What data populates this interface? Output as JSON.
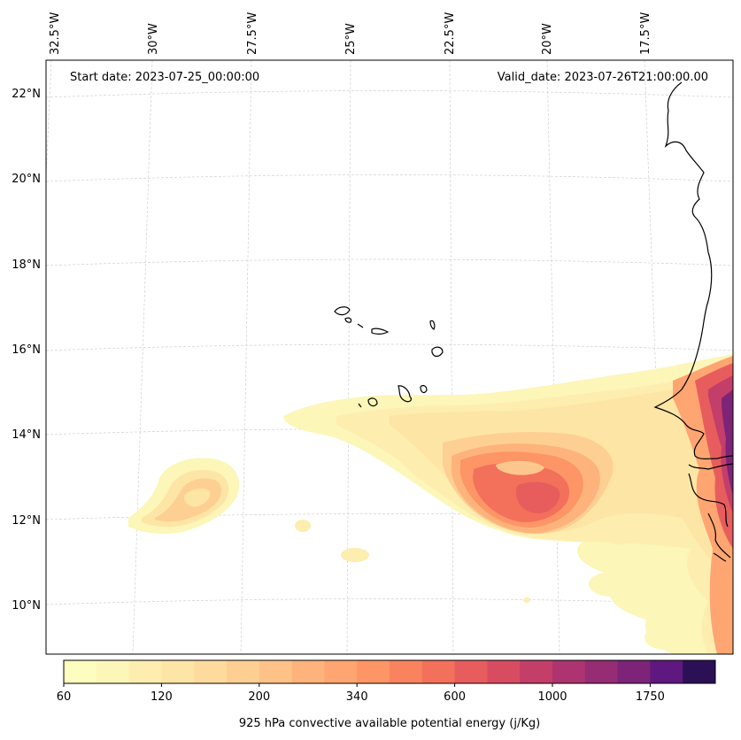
{
  "map": {
    "start_label": "Start date: 2023-07-25_00:00:00",
    "valid_label": "Valid_date: 2023-07-26T21:00:00.00",
    "lon_labels": [
      {
        "label": "32.5°W"
      },
      {
        "label": "30°W"
      },
      {
        "label": "27.5°W"
      },
      {
        "label": "25°W"
      },
      {
        "label": "22.5°W"
      },
      {
        "label": "20°W"
      },
      {
        "label": "17.5°W"
      }
    ],
    "lat_labels": [
      {
        "label": "22°N"
      },
      {
        "label": "20°N"
      },
      {
        "label": "18°N"
      },
      {
        "label": "16°N"
      },
      {
        "label": "14°N"
      },
      {
        "label": "12°N"
      },
      {
        "label": "10°N"
      }
    ],
    "colorbar": {
      "title": "925 hPa convective available potential energy (j/Kg)",
      "tick_labels": [
        "60",
        "120",
        "200",
        "340",
        "600",
        "1000",
        "1750"
      ],
      "colors": [
        "#fcfdbf",
        "#fcf6b8",
        "#fdeeaf",
        "#fde5a6",
        "#fedb9c",
        "#fecf92",
        "#fec287",
        "#feb37c",
        "#fea571",
        "#fd9566",
        "#f9835f",
        "#f3705b",
        "#e75d5d",
        "#d84c62",
        "#c43e6a",
        "#ad3470",
        "#952c74",
        "#7d2478",
        "#5f187f",
        "#2c1055"
      ]
    }
  }
}
